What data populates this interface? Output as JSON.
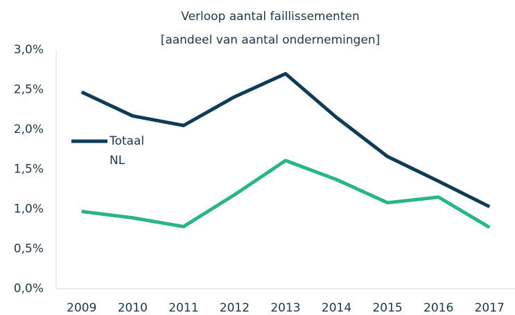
{
  "chart_data": {
    "type": "line",
    "title": [
      "Verloop aantal faillissementen",
      "[aandeel van aantal ondernemingen]"
    ],
    "categories": [
      "2009",
      "2010",
      "2011",
      "2012",
      "2013",
      "2014",
      "2015",
      "2016",
      "2017"
    ],
    "series": [
      {
        "name": "Totaal NL",
        "color": "#0e3b55",
        "values": [
          2.47,
          2.17,
          2.05,
          2.41,
          2.7,
          2.15,
          1.66,
          1.35,
          1.03
        ]
      },
      {
        "color": "#2ab585",
        "values": [
          0.97,
          0.89,
          0.78,
          1.18,
          1.61,
          1.37,
          1.08,
          1.15,
          0.77
        ]
      }
    ],
    "ylim": [
      0,
      3
    ],
    "yticks": [
      {
        "value": 0,
        "label": "0,0%"
      },
      {
        "value": 0.5,
        "label": "0,5%"
      },
      {
        "value": 1,
        "label": "1,0%"
      },
      {
        "value": 1.5,
        "label": "1,5%"
      },
      {
        "value": 2,
        "label": "2,0%"
      },
      {
        "value": 2.5,
        "label": "2,5%"
      },
      {
        "value": 3,
        "label": "3,0%"
      }
    ],
    "grid": false
  }
}
